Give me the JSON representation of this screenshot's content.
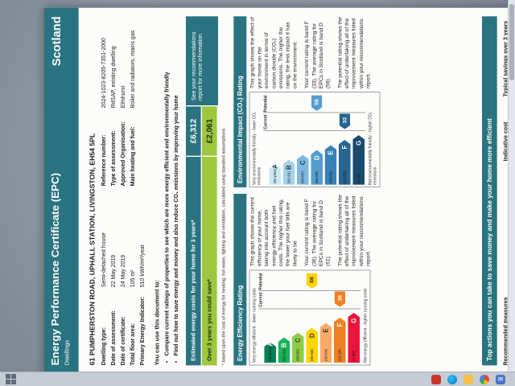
{
  "page": {
    "header": {
      "title": "Energy Performance Certificate (EPC)",
      "subtitle": "Dwellings",
      "region": "Scotland"
    },
    "address": "61 PUMPHERSTON ROAD, UPHALL STATION, LIVINGSTON, EH54 5PL",
    "details_left": [
      {
        "label": "Dwelling type:",
        "value": "Semi-detached house"
      },
      {
        "label": "Date of assessment:",
        "value": "22 May 2019"
      },
      {
        "label": "Date of certificate:",
        "value": "24 May 2019"
      },
      {
        "label": "Total floor area:",
        "value": "105 m²"
      },
      {
        "label": "Primary Energy Indicator:",
        "value": "510 kWh/m²/year"
      }
    ],
    "details_right": [
      {
        "label": "Reference number:",
        "value": "2024-1023-8205-7351-2000"
      },
      {
        "label": "Type of assessment:",
        "value": "RdSAP, existing dwelling"
      },
      {
        "label": "Approved Organisation:",
        "value": "Elmhurst"
      },
      {
        "label": "Main heating and fuel:",
        "value": "Boiler and radiators, mains gas"
      }
    ],
    "usage": {
      "intro": "You can use this document to:",
      "bullets": [
        "Compare current ratings of properties to see which are more energy efficient and environmentally friendly",
        "Find out how to save energy and money and also reduce CO₂ emissions by improving your home"
      ]
    },
    "costs": {
      "estimated_label": "Estimated energy costs for your home for 3 years*",
      "estimated_value": "£6,312",
      "save_label": "Over 3 years you could save*",
      "save_value": "£2,061",
      "side_note": "See your recommendations report for more information",
      "footnote": "* based upon the cost of energy for heating, hot water, lighting and ventilation, calculated using standard assumptions"
    },
    "chart_columns": {
      "current": "Current",
      "potential": "Potential"
    },
    "energy_rating": {
      "title": "Energy Efficiency Rating",
      "top_caption": "Very energy efficient - lower running costs",
      "bottom_caption": "Not energy efficient - higher running costs",
      "bands": [
        {
          "letter": "A",
          "range": "(92 plus)",
          "color": "#008054"
        },
        {
          "letter": "B",
          "range": "(81-91)",
          "color": "#19b459"
        },
        {
          "letter": "C",
          "range": "(69-80)",
          "color": "#8dce46"
        },
        {
          "letter": "D",
          "range": "(55-68)",
          "color": "#ffd500"
        },
        {
          "letter": "E",
          "range": "(39-54)",
          "color": "#fcaa65"
        },
        {
          "letter": "F",
          "range": "(21-38)",
          "color": "#ef8023"
        },
        {
          "letter": "G",
          "range": "(1-20)",
          "color": "#e9153b"
        }
      ],
      "current": {
        "value": "36",
        "band": "F",
        "color": "#ef8023",
        "text_color": "#ffffff"
      },
      "potential": {
        "value": "66",
        "band": "D",
        "color": "#ffd500",
        "text_color": "#333333"
      },
      "paragraphs": [
        "This graph shows the current efficiency of your home, taking into account both energy efficiency and fuel costs. The higher this rating, the lower your fuel bills are likely to be.",
        "Your current rating is band F (36). The average rating for EPCs in Scotland is band D (61).",
        "The potential rating shows the effect of undertaking all of the improvement measures listed within your recommendations report."
      ]
    },
    "environmental_rating": {
      "title": "Environmental Impact (CO₂) Rating",
      "top_caption": "Very environmentally friendly - lower CO₂ emissions",
      "bottom_caption": "Not environmentally friendly - higher CO₂ emissions",
      "bands": [
        {
          "letter": "A",
          "range": "(92 plus)",
          "color": "#cde8f5"
        },
        {
          "letter": "B",
          "range": "(81-91)",
          "color": "#a6d2ec"
        },
        {
          "letter": "C",
          "range": "(69-80)",
          "color": "#7db9df"
        },
        {
          "letter": "D",
          "range": "(55-68)",
          "color": "#569dcf"
        },
        {
          "letter": "E",
          "range": "(39-54)",
          "color": "#3a80b8"
        },
        {
          "letter": "F",
          "range": "(21-38)",
          "color": "#276592"
        },
        {
          "letter": "G",
          "range": "(1-20)",
          "color": "#1a4a6e"
        }
      ],
      "current": {
        "value": "33",
        "band": "F",
        "color": "#276592",
        "text_color": "#ffffff"
      },
      "potential": {
        "value": "58",
        "band": "D",
        "color": "#569dcf",
        "text_color": "#ffffff"
      },
      "paragraphs": [
        "This graph shows the effect of your home on the environment in terms of carbon dioxide (CO₂) emissions. The higher the rating, the less impact it has on the environment.",
        "Your current rating is band F (33). The average rating for EPCs in Scotland is band D (59).",
        "The potential rating shows the effect of undertaking all of the improvement measures listed within your recommendations report."
      ]
    },
    "actions_title": "Top actions you can take to save money and make your home more efficient",
    "rec_table": {
      "headers": [
        "Recommended measures",
        "Indicative cost",
        "Typical savings over 3 years"
      ]
    }
  },
  "chart_data": [
    {
      "type": "bar",
      "title": "Energy Efficiency Rating",
      "categories": [
        "A (92 plus)",
        "B (81-91)",
        "C (69-80)",
        "D (55-68)",
        "E (39-54)",
        "F (21-38)",
        "G (1-20)"
      ],
      "current": 36,
      "current_band": "F",
      "potential": 66,
      "potential_band": "D",
      "scotland_average": 61
    },
    {
      "type": "bar",
      "title": "Environmental Impact (CO₂) Rating",
      "categories": [
        "A (92 plus)",
        "B (81-91)",
        "C (69-80)",
        "D (55-68)",
        "E (39-54)",
        "F (21-38)",
        "G (1-20)"
      ],
      "current": 33,
      "current_band": "F",
      "potential": 58,
      "potential_band": "D",
      "scotland_average": 59
    }
  ],
  "taskbar": {
    "icons": [
      "start",
      "edge-browser",
      "folder",
      "chrome-browser",
      "mail",
      "red-app"
    ]
  },
  "colors": {
    "teal": "#2a7380",
    "green_row": "#9ec73d",
    "photo_background": "#8a93a0"
  }
}
